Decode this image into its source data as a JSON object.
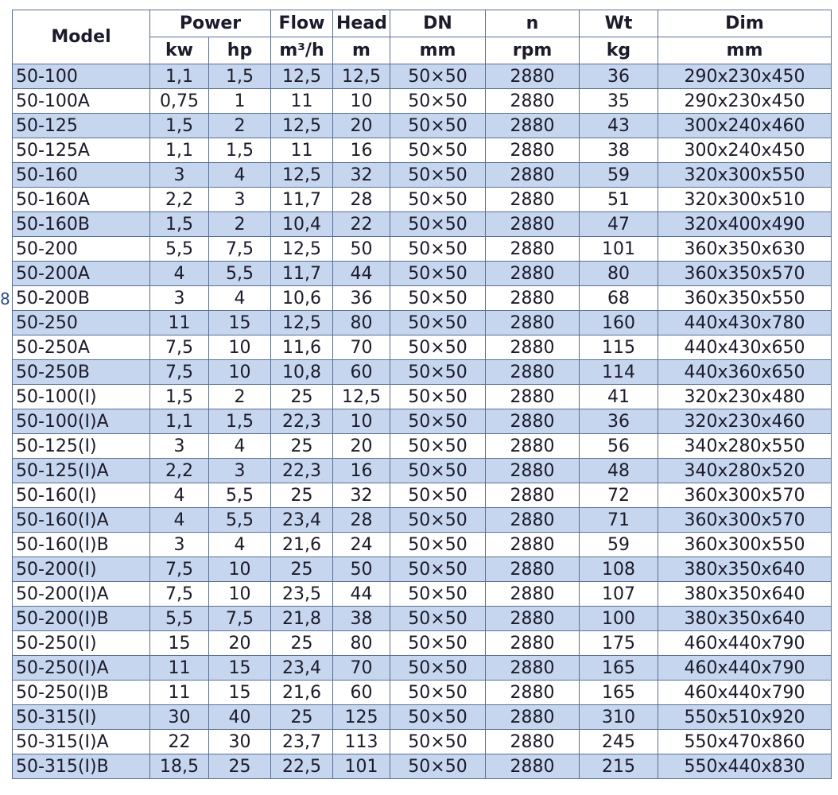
{
  "side_mark": "8",
  "table": {
    "header_top": [
      "Model",
      "Power",
      "Flow",
      "Head",
      "DN",
      "n",
      "Wt",
      "Dim"
    ],
    "header_sub": [
      "kw",
      "hp",
      "m³/h",
      "m",
      "mm",
      "rpm",
      "kg",
      "mm"
    ],
    "rows": [
      [
        "50-100",
        "1,1",
        "1,5",
        "12,5",
        "12,5",
        "50×50",
        "2880",
        "36",
        "290x230x450"
      ],
      [
        "50-100A",
        "0,75",
        "1",
        "11",
        "10",
        "50×50",
        "2880",
        "35",
        "290x230x450"
      ],
      [
        "50-125",
        "1,5",
        "2",
        "12,5",
        "20",
        "50×50",
        "2880",
        "43",
        "300x240x460"
      ],
      [
        "50-125A",
        "1,1",
        "1,5",
        "11",
        "16",
        "50×50",
        "2880",
        "38",
        "300x240x450"
      ],
      [
        "50-160",
        "3",
        "4",
        "12,5",
        "32",
        "50×50",
        "2880",
        "59",
        "320x300x550"
      ],
      [
        "50-160A",
        "2,2",
        "3",
        "11,7",
        "28",
        "50×50",
        "2880",
        "51",
        "320x300x510"
      ],
      [
        "50-160B",
        "1,5",
        "2",
        "10,4",
        "22",
        "50×50",
        "2880",
        "47",
        "320x400x490"
      ],
      [
        "50-200",
        "5,5",
        "7,5",
        "12,5",
        "50",
        "50×50",
        "2880",
        "101",
        "360x350x630"
      ],
      [
        "50-200A",
        "4",
        "5,5",
        "11,7",
        "44",
        "50×50",
        "2880",
        "80",
        "360x350x570"
      ],
      [
        "50-200B",
        "3",
        "4",
        "10,6",
        "36",
        "50×50",
        "2880",
        "68",
        "360x350x550"
      ],
      [
        "50-250",
        "11",
        "15",
        "12,5",
        "80",
        "50×50",
        "2880",
        "160",
        "440x430x780"
      ],
      [
        "50-250A",
        "7,5",
        "10",
        "11,6",
        "70",
        "50×50",
        "2880",
        "115",
        "440x430x650"
      ],
      [
        "50-250B",
        "7,5",
        "10",
        "10,8",
        "60",
        "50×50",
        "2880",
        "114",
        "440x360x650"
      ],
      [
        "50-100(I)",
        "1,5",
        "2",
        "25",
        "12,5",
        "50×50",
        "2880",
        "41",
        "320x230x480"
      ],
      [
        "50-100(I)A",
        "1,1",
        "1,5",
        "22,3",
        "10",
        "50×50",
        "2880",
        "36",
        "320x230x460"
      ],
      [
        "50-125(I)",
        "3",
        "4",
        "25",
        "20",
        "50×50",
        "2880",
        "56",
        "340x280x550"
      ],
      [
        "50-125(I)A",
        "2,2",
        "3",
        "22,3",
        "16",
        "50×50",
        "2880",
        "48",
        "340x280x520"
      ],
      [
        "50-160(I)",
        "4",
        "5,5",
        "25",
        "32",
        "50×50",
        "2880",
        "72",
        "360x300x570"
      ],
      [
        "50-160(I)A",
        "4",
        "5,5",
        "23,4",
        "28",
        "50×50",
        "2880",
        "71",
        "360x300x570"
      ],
      [
        "50-160(I)B",
        "3",
        "4",
        "21,6",
        "24",
        "50×50",
        "2880",
        "59",
        "360x300x550"
      ],
      [
        "50-200(I)",
        "7,5",
        "10",
        "25",
        "50",
        "50×50",
        "2880",
        "108",
        "380x350x640"
      ],
      [
        "50-200(I)A",
        "7,5",
        "10",
        "23,5",
        "44",
        "50×50",
        "2880",
        "107",
        "380x350x640"
      ],
      [
        "50-200(I)B",
        "5,5",
        "7,5",
        "21,8",
        "38",
        "50×50",
        "2880",
        "100",
        "380x350x640"
      ],
      [
        "50-250(I)",
        "15",
        "20",
        "25",
        "80",
        "50×50",
        "2880",
        "175",
        "460x440x790"
      ],
      [
        "50-250(I)A",
        "11",
        "15",
        "23,4",
        "70",
        "50×50",
        "2880",
        "165",
        "460x440x790"
      ],
      [
        "50-250(I)B",
        "11",
        "15",
        "21,6",
        "60",
        "50×50",
        "2880",
        "165",
        "460x440x790"
      ],
      [
        "50-315(I)",
        "30",
        "40",
        "25",
        "125",
        "50×50",
        "2880",
        "310",
        "550x510x920"
      ],
      [
        "50-315(I)A",
        "22",
        "30",
        "23,7",
        "113",
        "50×50",
        "2880",
        "245",
        "550x470x860"
      ],
      [
        "50-315(I)B",
        "18,5",
        "25",
        "22,5",
        "101",
        "50×50",
        "2880",
        "215",
        "550x440x830"
      ]
    ]
  }
}
